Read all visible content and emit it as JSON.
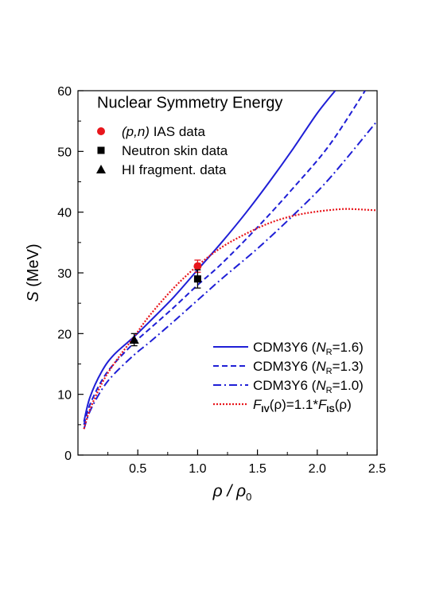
{
  "chart_data": {
    "type": "line",
    "title": "Nuclear Symmetry Energy",
    "xlabel": {
      "main": "ρ / ρ",
      "sub": "0"
    },
    "ylabel": {
      "italic": "S",
      "rest": " (MeV)"
    },
    "xlim": [
      0.0,
      2.5
    ],
    "ylim": [
      0,
      60
    ],
    "xticks": [
      {
        "v": 0.5,
        "label": "0.5"
      },
      {
        "v": 1.0,
        "label": "1.0"
      },
      {
        "v": 1.5,
        "label": "1.5"
      },
      {
        "v": 2.0,
        "label": "2.0"
      },
      {
        "v": 2.5,
        "label": "2.5"
      }
    ],
    "yticks": [
      {
        "v": 0,
        "label": "0"
      },
      {
        "v": 10,
        "label": "10"
      },
      {
        "v": 20,
        "label": "20"
      },
      {
        "v": 30,
        "label": "30"
      },
      {
        "v": 40,
        "label": "40"
      },
      {
        "v": 50,
        "label": "50"
      },
      {
        "v": 60,
        "label": "60"
      }
    ],
    "colors": {
      "blue": "#1f1fd6",
      "red": "#e8161c",
      "black": "#000000"
    },
    "series": [
      {
        "name": "CDM3Y6 (N_R=1.6)",
        "label": {
          "a": "CDM3Y6 (",
          "b": "N",
          "c": "R",
          "d": "=1.6)"
        },
        "style": "solid",
        "color": "#1f1fd6",
        "x": [
          0.05,
          0.1,
          0.2,
          0.3,
          0.47,
          0.6,
          0.8,
          1.0,
          1.2,
          1.4,
          1.6,
          1.8,
          2.0,
          2.15
        ],
        "y": [
          5.5,
          9.5,
          13.8,
          16.5,
          19.5,
          22,
          26,
          30.5,
          35,
          39.8,
          45,
          50.5,
          56.3,
          60
        ]
      },
      {
        "name": "CDM3Y6 (N_R=1.3)",
        "label": {
          "a": "CDM3Y6 (",
          "b": "N",
          "c": "R",
          "d": "=1.3)"
        },
        "style": "dashed",
        "color": "#1f1fd6",
        "x": [
          0.05,
          0.1,
          0.2,
          0.3,
          0.47,
          0.6,
          0.8,
          1.0,
          1.2,
          1.5,
          1.8,
          2.1,
          2.4
        ],
        "y": [
          5,
          8.3,
          12.3,
          15,
          18.5,
          20.8,
          24.3,
          28,
          31.5,
          37.5,
          44,
          51,
          60
        ]
      },
      {
        "name": "CDM3Y6 (N_R=1.0)",
        "label": {
          "a": "CDM3Y6 (",
          "b": "N",
          "c": "R",
          "d": "=1.0)"
        },
        "style": "dashdot",
        "color": "#1f1fd6",
        "x": [
          0.05,
          0.1,
          0.2,
          0.3,
          0.47,
          0.6,
          0.8,
          1.0,
          1.2,
          1.5,
          1.8,
          2.1,
          2.5
        ],
        "y": [
          4.3,
          7.2,
          10.8,
          13.3,
          16.5,
          18.6,
          22,
          25.5,
          29,
          34,
          39.5,
          45.5,
          55
        ]
      },
      {
        "name": "F_IV(ρ)=1.1*F_IS(ρ)",
        "label": {
          "a": "F",
          "b": "IV",
          "c": "(ρ)=1.1*",
          "d": "F",
          "e": "IS",
          "f": "(ρ)"
        },
        "style": "dotted",
        "color": "#e8161c",
        "x": [
          0.05,
          0.1,
          0.2,
          0.3,
          0.47,
          0.6,
          0.8,
          1.0,
          1.2,
          1.4,
          1.6,
          1.8,
          2.0,
          2.2,
          2.3,
          2.4,
          2.5
        ],
        "y": [
          4.3,
          7.5,
          11.8,
          15,
          19.5,
          23,
          27.5,
          31.2,
          34.2,
          36.4,
          38.2,
          39.4,
          40.1,
          40.5,
          40.5,
          40.4,
          40.3
        ]
      }
    ],
    "points": [
      {
        "name": "(p,n) IAS data",
        "label": {
          "a": "(p,n)",
          "b": " IAS data"
        },
        "marker": "circle",
        "color": "#e8161c",
        "x": 1.0,
        "y": 31.1,
        "err": 1.0
      },
      {
        "name": "Neutron skin data",
        "label": {
          "a": "Neutron skin data"
        },
        "marker": "square",
        "color": "#000000",
        "x": 1.0,
        "y": 29.0,
        "err": 1.5
      },
      {
        "name": "HI fragment. data",
        "label": {
          "a": "HI fragment. data"
        },
        "marker": "triangle",
        "color": "#000000",
        "x": 0.47,
        "y": 19.0,
        "err": 1.0
      }
    ]
  }
}
